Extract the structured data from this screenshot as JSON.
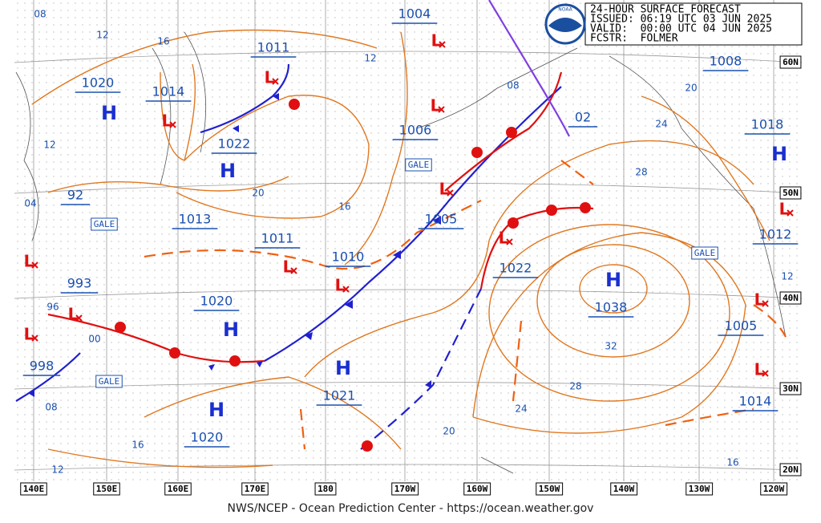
{
  "header": {
    "lines": [
      "24-HOUR SURFACE FORECAST",
      "ISSUED: 06:19 UTC 03 JUN 2025",
      "VALID:  00:00 UTC 04 JUN 2025",
      "FCSTR:  FOLMER"
    ],
    "logo": "NOAA"
  },
  "map": {
    "longitudes": [
      "140E",
      "150E",
      "160E",
      "170E",
      "180",
      "170W",
      "160W",
      "150W",
      "140W",
      "130W",
      "120W"
    ],
    "latitudes": [
      "60N",
      "50N",
      "40N",
      "30N",
      "20N"
    ],
    "pressure_labels": [
      "1004",
      "1011",
      "1020",
      "1014",
      "1022",
      "1006",
      "92",
      "1013",
      "1011",
      "1010",
      "1005",
      "1022",
      "993",
      "1020",
      "1038",
      "1005",
      "998",
      "1021",
      "1020",
      "1014",
      "1008",
      "02",
      "1018",
      "1012"
    ],
    "highs": [
      "H",
      "H",
      "H",
      "H",
      "H",
      "H",
      "H"
    ],
    "lows": [
      "L",
      "L",
      "L",
      "L",
      "L",
      "L",
      "L",
      "L",
      "L",
      "L",
      "L",
      "L",
      "L",
      "L"
    ],
    "isobar_labels": [
      "08",
      "12",
      "16",
      "12",
      "12",
      "04",
      "96",
      "00",
      "08",
      "16",
      "12",
      "20",
      "16",
      "08",
      "24",
      "20",
      "28",
      "32",
      "28",
      "24",
      "20",
      "16",
      "12"
    ],
    "gale_labels": [
      "GALE",
      "GALE",
      "GALE",
      "GALE"
    ]
  },
  "footer": "NWS/NCEP - Ocean Prediction Center - https://ocean.weather.gov"
}
